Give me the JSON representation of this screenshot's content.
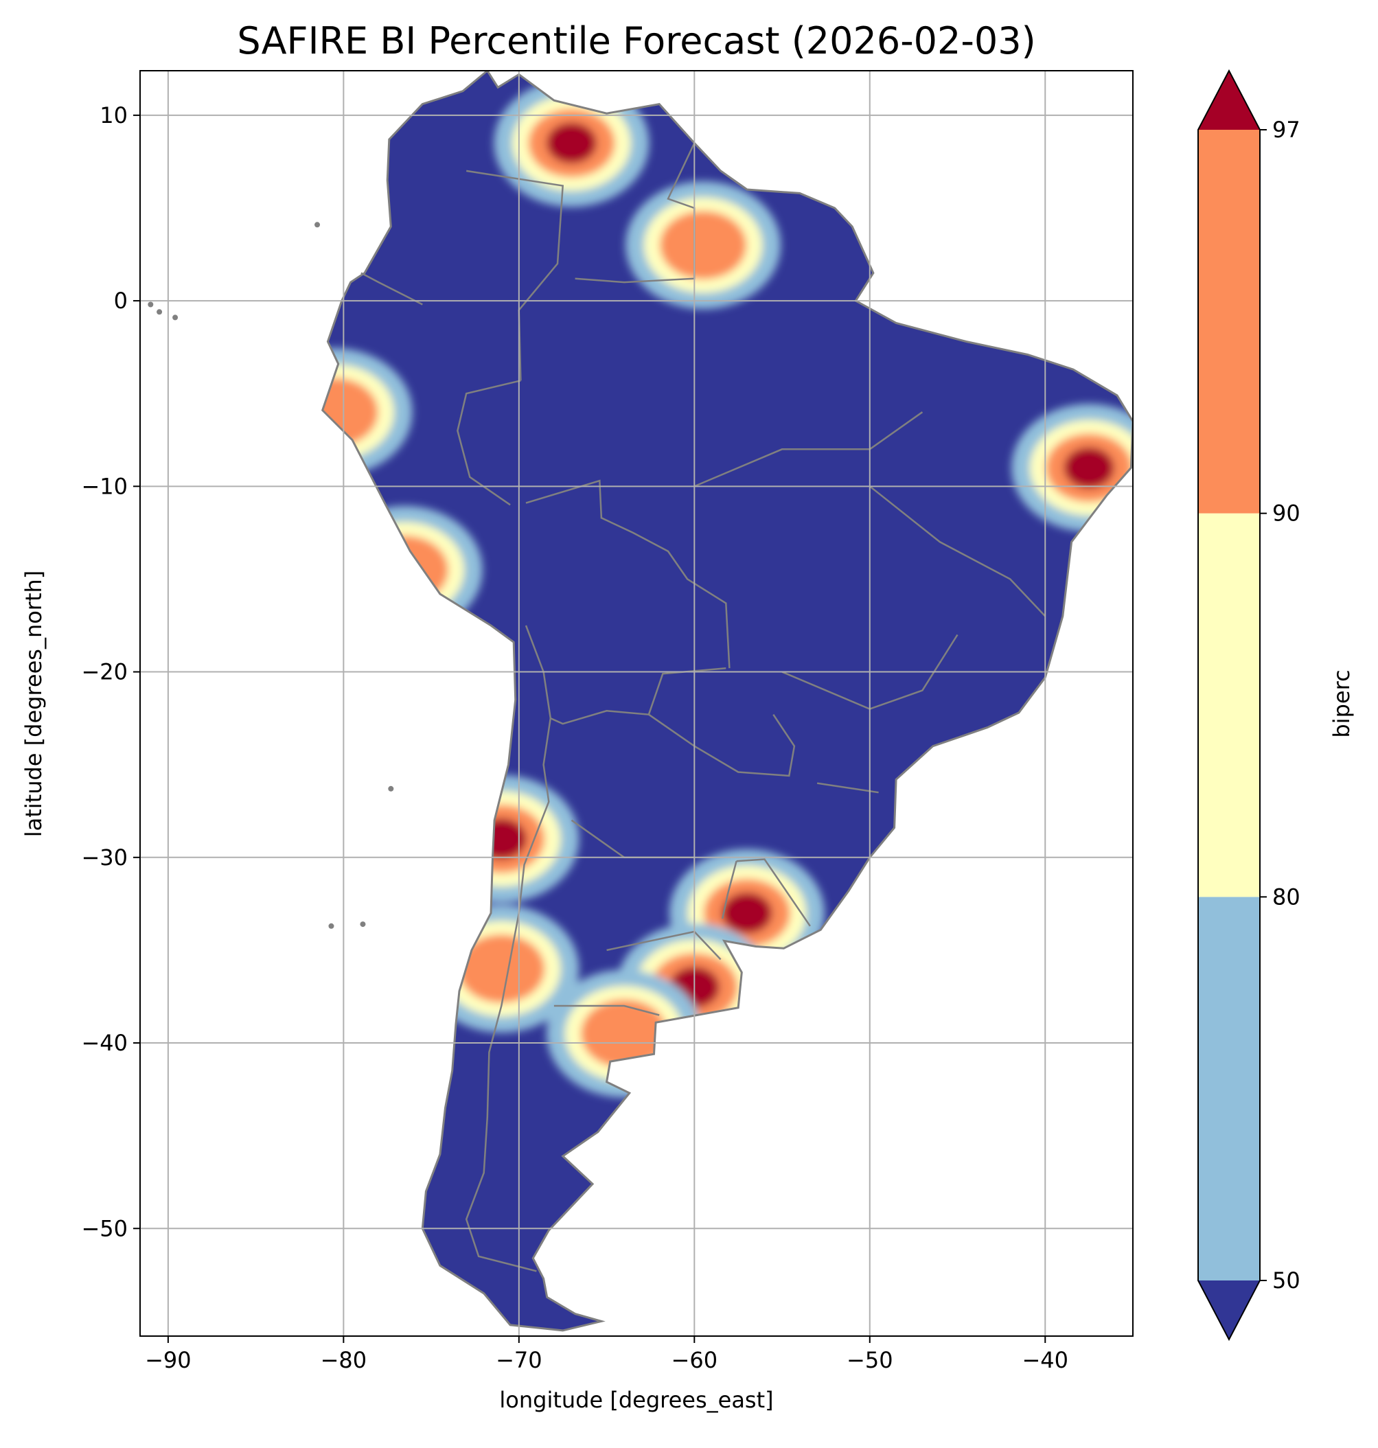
{
  "title": "SAFIRE BI Percentile Forecast (2026-02-03)",
  "map": {
    "xlabel": "longitude [degrees_east]",
    "ylabel": "latitude [degrees_north]",
    "xlim": [
      -91.6,
      -35.0
    ],
    "ylim": [
      -55.8,
      12.4
    ],
    "x_ticks": [
      -90,
      -80,
      -70,
      -60,
      -50,
      -40
    ],
    "y_ticks": [
      10,
      0,
      -10,
      -20,
      -30,
      -40,
      -50
    ],
    "x_tick_labels": [
      "−90",
      "−80",
      "−70",
      "−60",
      "−50",
      "−40"
    ],
    "y_tick_labels": [
      "10",
      "0",
      "−10",
      "−20",
      "−30",
      "−40",
      "−50"
    ],
    "grid": true,
    "land_color": "#313695",
    "border_color": "#808080",
    "grid_color": "#b0b0b0"
  },
  "colorbar": {
    "label": "biperc",
    "tick_labels": [
      "50",
      "80",
      "90",
      "97"
    ],
    "levels": [
      50,
      80,
      90,
      97
    ],
    "bands": [
      {
        "from": 50,
        "to": 80,
        "color": "#91bfdb"
      },
      {
        "from": 80,
        "to": 90,
        "color": "#ffffbf"
      },
      {
        "from": 90,
        "to": 97,
        "color": "#fc8d59"
      }
    ],
    "under_color": "#313695",
    "over_color": "#a50026",
    "extend": "both"
  },
  "chart_data": {
    "type": "heatmap",
    "title": "SAFIRE BI Percentile Forecast (2026-02-03)",
    "xlabel": "longitude [degrees_east]",
    "ylabel": "latitude [degrees_north]",
    "variable": "biperc",
    "xlim": [
      -91.6,
      -35.0
    ],
    "ylim": [
      -55.8,
      12.4
    ],
    "region": "South America",
    "levels": [
      50,
      80,
      90,
      97
    ],
    "grid": true,
    "colorbar": "right",
    "hotspots": [
      {
        "lon": -67,
        "lat": 8.5,
        "value": 97
      },
      {
        "lon": -59.5,
        "lat": 3,
        "value": 92
      },
      {
        "lon": -37.5,
        "lat": -9,
        "value": 97
      },
      {
        "lon": -57,
        "lat": -33,
        "value": 97
      },
      {
        "lon": -60,
        "lat": -37,
        "value": 97
      },
      {
        "lon": -64,
        "lat": -39.5,
        "value": 90
      },
      {
        "lon": -71,
        "lat": -29,
        "value": 97
      },
      {
        "lon": -71,
        "lat": -36,
        "value": 90
      },
      {
        "lon": -80.5,
        "lat": -6,
        "value": 90
      },
      {
        "lon": -76.5,
        "lat": -14.5,
        "value": 90
      }
    ]
  }
}
